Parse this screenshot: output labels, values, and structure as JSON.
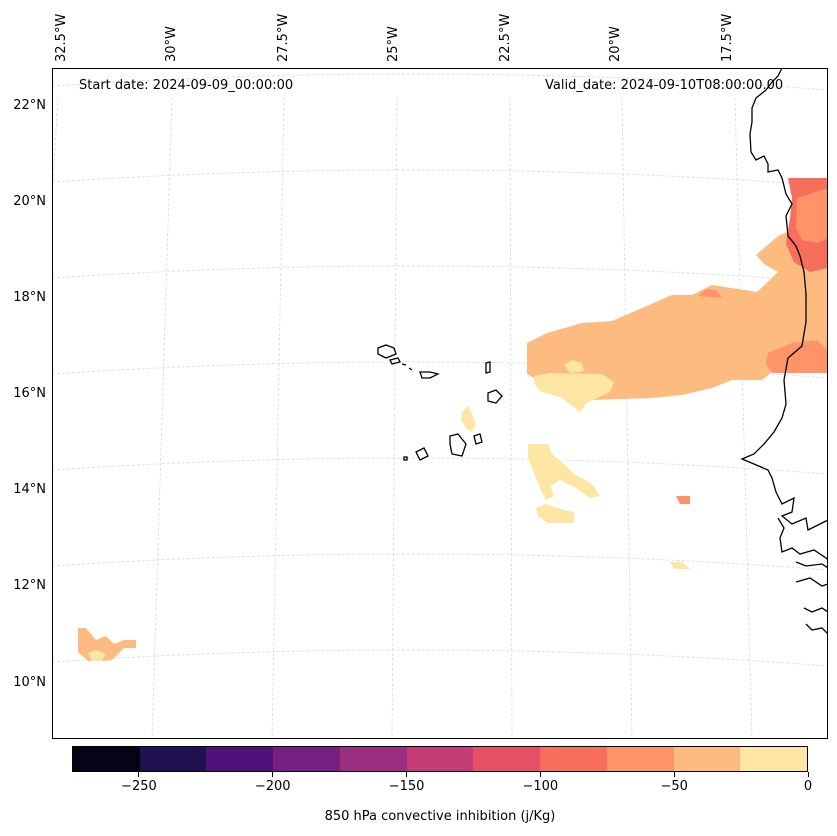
{
  "header": {
    "start_date": "Start date: 2024-09-09_00:00:00",
    "valid_date": "Valid_date: 2024-09-10T08:00:00.00"
  },
  "lon_labels": [
    "32.5°W",
    "30°W",
    "27.5°W",
    "25°W",
    "22.5°W",
    "20°W",
    "17.5°W"
  ],
  "lat_labels": [
    "22°N",
    "20°N",
    "18°N",
    "16°N",
    "14°N",
    "12°N",
    "10°N"
  ],
  "colorbar": {
    "title": "850 hPa convective inhibition (j/Kg)",
    "tick_labels": [
      "−250",
      "−200",
      "−150",
      "−100",
      "−50",
      "0"
    ],
    "tick_values": [
      -250,
      -200,
      -150,
      -100,
      -50,
      0
    ],
    "range": [
      -275,
      0
    ],
    "colors": [
      "#050417",
      "#221150",
      "#4f117b",
      "#761f80",
      "#9c2e7f",
      "#c43c75",
      "#e55064",
      "#f66e5c",
      "#fe9467",
      "#febb80",
      "#fde5a4"
    ]
  },
  "map_data": {
    "variable": "850 hPa convective inhibition",
    "units": "j/Kg",
    "level_colors": {
      "(-100,-75)": "#f66e5c",
      "(-75,-50)": "#fe9467",
      "(-50,-25)": "#febb80",
      "(-25,0)": "#fde5a4"
    },
    "coastline_color": "#000000"
  }
}
